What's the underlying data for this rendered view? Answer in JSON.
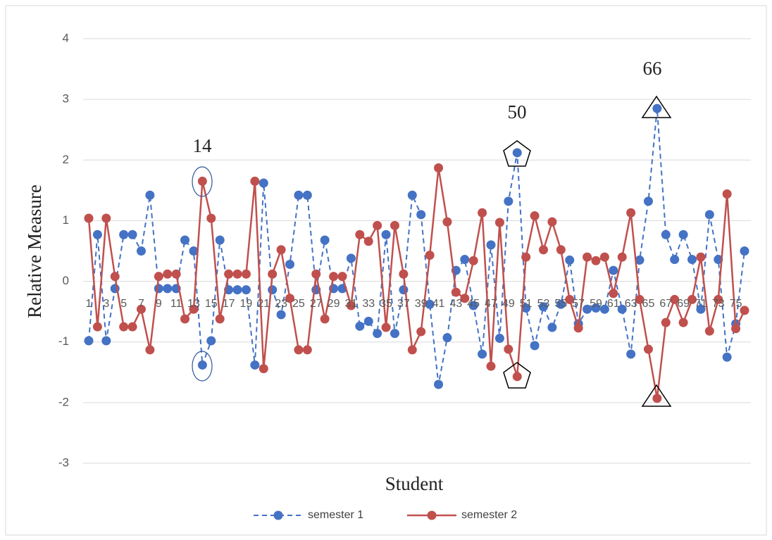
{
  "chart_data": {
    "type": "line",
    "x_label": "Student",
    "y_label": "Relative Measure",
    "categories": [
      "1",
      null,
      "3",
      null,
      "5",
      null,
      "7",
      null,
      "9",
      null,
      "11",
      null,
      "13",
      null,
      "15",
      null,
      "17",
      null,
      "19",
      null,
      "21",
      null,
      "23",
      null,
      "25",
      null,
      "27",
      null,
      "29",
      null,
      "31",
      null,
      "33",
      null,
      "35",
      null,
      "37",
      null,
      "39",
      null,
      "41",
      null,
      "43",
      null,
      "45",
      null,
      "47",
      null,
      "49",
      null,
      "51",
      null,
      "53",
      null,
      "55",
      null,
      "57",
      null,
      "59",
      null,
      "61",
      null,
      "63",
      null,
      "65",
      null,
      "67",
      null,
      "69",
      null,
      "71",
      null,
      "73",
      null,
      "75",
      null
    ],
    "series": [
      {
        "name": "semester 1",
        "color": "#4472c4",
        "dashed": true,
        "values": [
          -0.98,
          0.77,
          -0.98,
          -0.12,
          0.77,
          0.77,
          0.5,
          1.42,
          -0.12,
          -0.12,
          -0.12,
          0.68,
          0.5,
          -1.38,
          -0.98,
          0.68,
          -0.14,
          -0.14,
          -0.14,
          -1.38,
          1.62,
          -0.14,
          -0.55,
          0.28,
          1.42,
          1.42,
          -0.14,
          0.68,
          -0.12,
          -0.12,
          0.38,
          -0.74,
          -0.66,
          -0.86,
          0.77,
          -0.86,
          -0.14,
          1.42,
          1.1,
          -0.38,
          -1.7,
          -0.93,
          0.18,
          0.36,
          -0.4,
          -1.2,
          0.6,
          -0.94,
          1.32,
          2.12,
          -0.44,
          -1.06,
          -0.42,
          -0.76,
          -0.38,
          0.35,
          -0.7,
          -0.46,
          -0.44,
          -0.46,
          0.18,
          -0.46,
          -1.2,
          0.35,
          1.32,
          2.85,
          0.77,
          0.36,
          0.77,
          0.36,
          -0.46,
          1.1,
          0.36,
          -1.25,
          -0.7,
          0.5
        ]
      },
      {
        "name": "semester 2",
        "color": "#c0504d",
        "dashed": false,
        "values": [
          1.04,
          -0.75,
          1.04,
          0.08,
          -0.75,
          -0.75,
          -0.46,
          -1.13,
          0.08,
          0.12,
          0.12,
          -0.62,
          -0.46,
          1.65,
          1.04,
          -0.62,
          0.12,
          0.12,
          0.12,
          1.65,
          -1.44,
          0.12,
          0.52,
          -0.28,
          -1.13,
          -1.13,
          0.12,
          -0.62,
          0.08,
          0.08,
          -0.4,
          0.77,
          0.66,
          0.92,
          -0.76,
          0.92,
          0.12,
          -1.13,
          -0.83,
          0.43,
          1.87,
          0.98,
          -0.18,
          -0.28,
          0.34,
          1.13,
          -1.4,
          0.97,
          -1.12,
          -1.57,
          0.4,
          1.08,
          0.52,
          0.98,
          0.52,
          -0.3,
          -0.77,
          0.4,
          0.34,
          0.4,
          -0.2,
          0.4,
          1.13,
          -0.3,
          -1.12,
          -1.93,
          -0.68,
          -0.3,
          -0.68,
          -0.3,
          0.4,
          -0.82,
          -0.3,
          1.44,
          -0.78,
          -0.48
        ]
      }
    ],
    "annotations": [
      "14",
      "50",
      "66"
    ],
    "ylim": [
      -3,
      4
    ],
    "yticks": [
      -3,
      -2,
      -1,
      0,
      1,
      2,
      3,
      4
    ],
    "grid": true,
    "legend": "bottom"
  }
}
